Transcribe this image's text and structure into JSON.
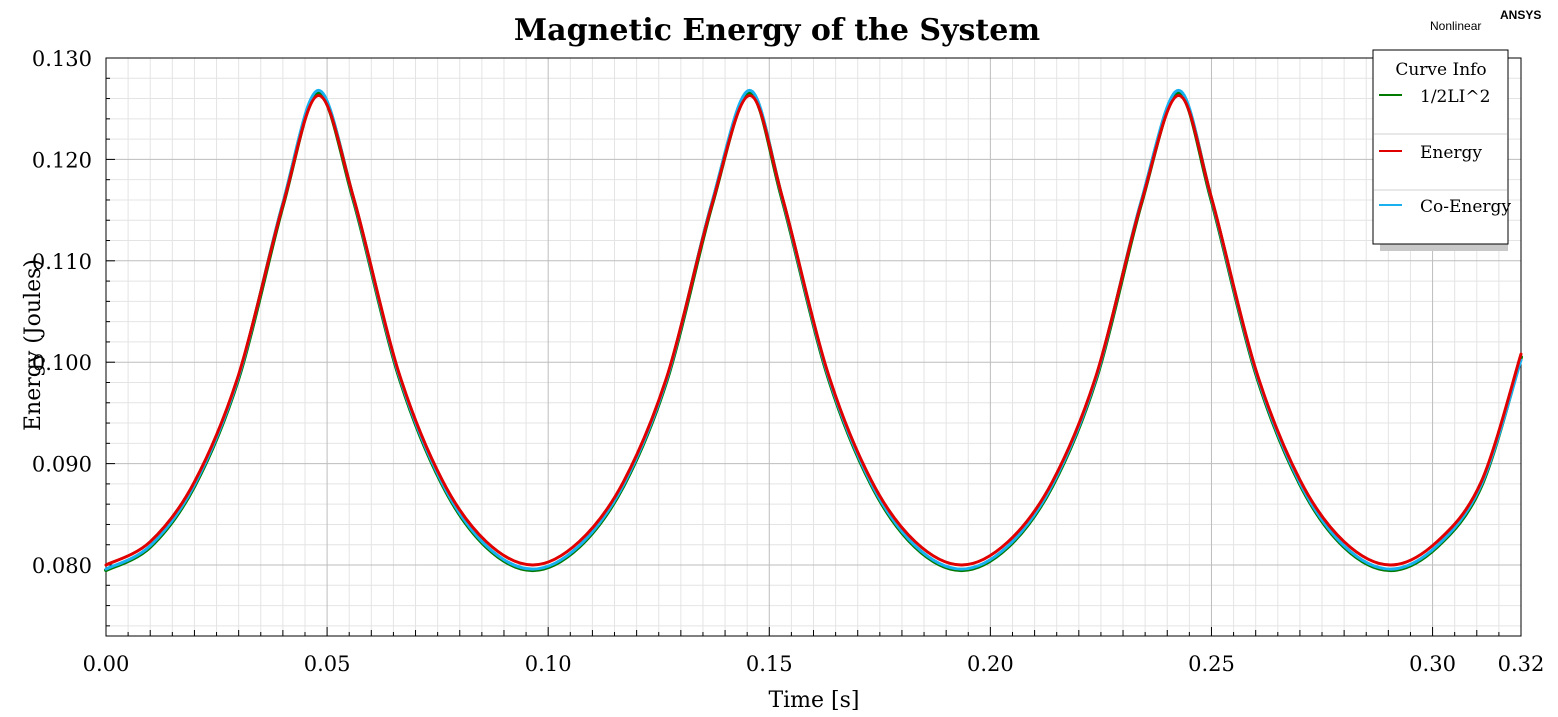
{
  "corner": {
    "brand": "ANSYS",
    "mode": "Nonlinear"
  },
  "legend": {
    "title": "Curve Info"
  },
  "chart_data": {
    "type": "line",
    "title": "Magnetic Energy of the System",
    "xlabel": "Time [s]",
    "ylabel": "Energy (Joules)",
    "xlim": [
      0,
      0.32
    ],
    "ylim": [
      0.073,
      0.13
    ],
    "xticks": [
      "0.00",
      "0.05",
      "0.10",
      "0.15",
      "0.20",
      "0.25",
      "0.30",
      "0.32"
    ],
    "yticks": [
      "0.080",
      "0.090",
      "0.100",
      "0.110",
      "0.120",
      "0.130"
    ],
    "grid": true,
    "legend_position": "top-right",
    "series": [
      {
        "name": "1/2LI^2",
        "color": "#007a00",
        "x": [
          0,
          0.01,
          0.02,
          0.03,
          0.04,
          0.048,
          0.056,
          0.066,
          0.076,
          0.086,
          0.0965,
          0.107,
          0.117,
          0.127,
          0.137,
          0.1455,
          0.153,
          0.163,
          0.173,
          0.183,
          0.1935,
          0.204,
          0.214,
          0.224,
          0.234,
          0.2425,
          0.25,
          0.26,
          0.27,
          0.28,
          0.2905,
          0.301,
          0.311,
          0.32
        ],
        "values": [
          0.0795,
          0.0818,
          0.0878,
          0.0985,
          0.1155,
          0.1265,
          0.116,
          0.099,
          0.088,
          0.0818,
          0.0795,
          0.0818,
          0.0878,
          0.0985,
          0.1155,
          0.1265,
          0.116,
          0.099,
          0.088,
          0.0818,
          0.0795,
          0.0818,
          0.0878,
          0.0985,
          0.1155,
          0.1265,
          0.116,
          0.099,
          0.088,
          0.0818,
          0.0795,
          0.0818,
          0.0878,
          0.1005
        ]
      },
      {
        "name": "Energy",
        "color": "#e00000",
        "x": [
          0,
          0.01,
          0.02,
          0.03,
          0.04,
          0.048,
          0.056,
          0.066,
          0.076,
          0.086,
          0.0965,
          0.107,
          0.117,
          0.127,
          0.137,
          0.1455,
          0.153,
          0.163,
          0.173,
          0.183,
          0.1935,
          0.204,
          0.214,
          0.224,
          0.234,
          0.2425,
          0.25,
          0.26,
          0.27,
          0.28,
          0.2905,
          0.301,
          0.311,
          0.32
        ],
        "values": [
          0.08,
          0.0823,
          0.0882,
          0.0988,
          0.1155,
          0.1263,
          0.1162,
          0.0993,
          0.0884,
          0.0823,
          0.08,
          0.0823,
          0.0882,
          0.0988,
          0.1155,
          0.1263,
          0.1162,
          0.0993,
          0.0884,
          0.0823,
          0.08,
          0.0823,
          0.0882,
          0.0988,
          0.1155,
          0.1263,
          0.1162,
          0.0993,
          0.0884,
          0.0823,
          0.08,
          0.0823,
          0.0882,
          0.1008
        ]
      },
      {
        "name": "Co-Energy",
        "color": "#19b0f0",
        "x": [
          0,
          0.01,
          0.02,
          0.03,
          0.04,
          0.048,
          0.056,
          0.066,
          0.076,
          0.086,
          0.0965,
          0.107,
          0.117,
          0.127,
          0.137,
          0.1455,
          0.153,
          0.163,
          0.173,
          0.183,
          0.1935,
          0.204,
          0.214,
          0.224,
          0.234,
          0.2425,
          0.25,
          0.26,
          0.27,
          0.28,
          0.2905,
          0.301,
          0.311,
          0.32
        ],
        "values": [
          0.0796,
          0.0819,
          0.0879,
          0.0986,
          0.1157,
          0.1268,
          0.1161,
          0.0991,
          0.0881,
          0.0819,
          0.0796,
          0.0819,
          0.0879,
          0.0986,
          0.1157,
          0.1268,
          0.1161,
          0.0991,
          0.0881,
          0.0819,
          0.0796,
          0.0819,
          0.0879,
          0.0986,
          0.1157,
          0.1268,
          0.1161,
          0.0991,
          0.0881,
          0.0819,
          0.0796,
          0.0819,
          0.0879,
          0.1002
        ]
      }
    ]
  }
}
